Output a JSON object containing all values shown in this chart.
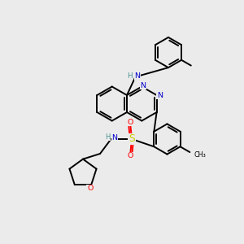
{
  "background_color": "#ebebeb",
  "atom_colors": {
    "C": "#000000",
    "N": "#0000cc",
    "O": "#ff0000",
    "S": "#cccc00",
    "H": "#4a9090"
  },
  "bond_color": "#000000",
  "bond_width": 1.4
}
